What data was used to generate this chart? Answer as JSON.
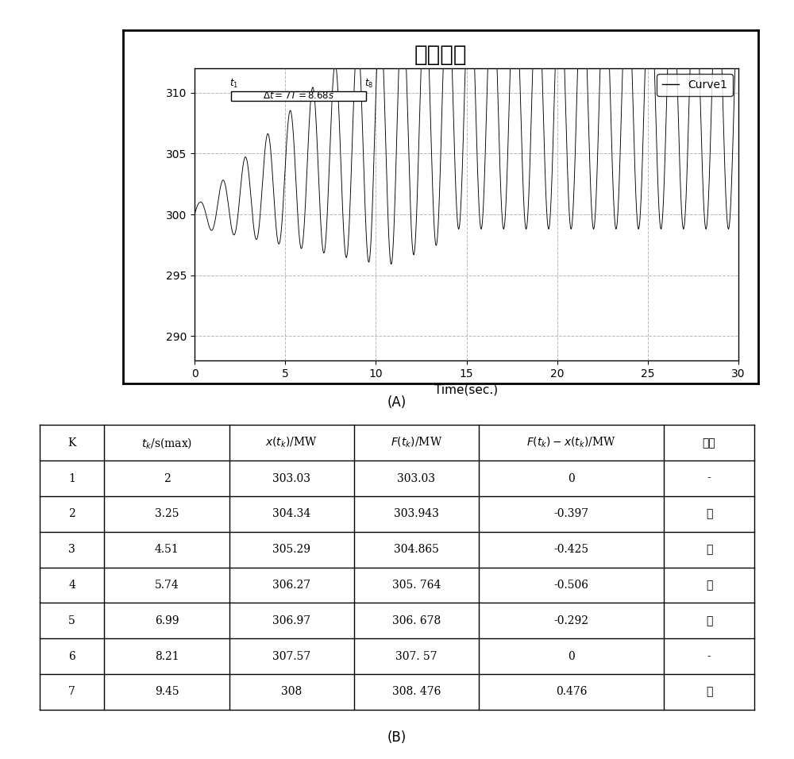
{
  "title": "强迫振荡",
  "xlabel": "Time(sec.)",
  "xlim": [
    0,
    30
  ],
  "ylim": [
    288,
    312
  ],
  "yticks": [
    290,
    295,
    300,
    305,
    310
  ],
  "xticks": [
    0,
    5,
    10,
    15,
    20,
    25,
    30
  ],
  "legend_label": "Curve1",
  "label_A": "(A)",
  "label_B": "(B)",
  "t1_x": 2.0,
  "t8_x": 9.45,
  "grid_color": "#999999",
  "line_color": "#000000",
  "header_row": [
    "K",
    "t_k/s(max)",
    "x(t_k)/MW",
    "F(t_k)/MW",
    "F(t_k)-x(t_k)/MW",
    "判据"
  ],
  "table_data": [
    [
      "1",
      "2",
      "303.03",
      "303.03",
      "0",
      "-"
    ],
    [
      "2",
      "3.25",
      "304.34",
      "303.943",
      "-0.397",
      "负"
    ],
    [
      "3",
      "4.51",
      "305.29",
      "304.865",
      "-0.425",
      "负"
    ],
    [
      "4",
      "5.74",
      "306.27",
      "305. 764",
      "-0.506",
      "负"
    ],
    [
      "5",
      "6.99",
      "306.97",
      "306. 678",
      "-0.292",
      "负"
    ],
    [
      "6",
      "8.21",
      "307.57",
      "307. 57",
      "0",
      "-"
    ],
    [
      "7",
      "9.45",
      "308",
      "308. 476",
      "0.476",
      "正"
    ]
  ]
}
